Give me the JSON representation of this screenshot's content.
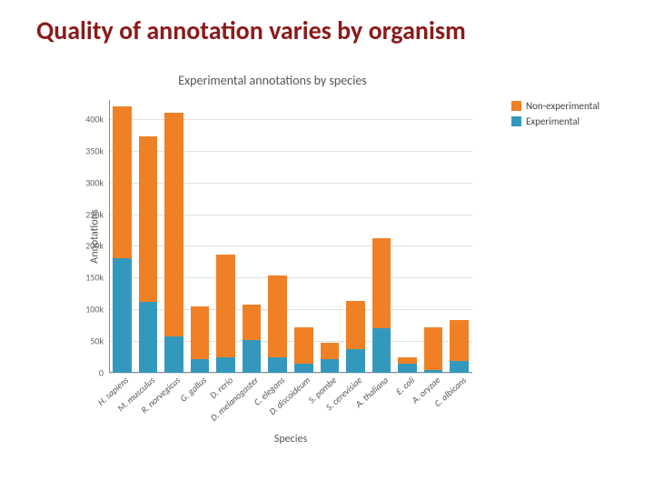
{
  "slide": {
    "title": "Quality of annotation varies by organism",
    "title_color": "#8b1a1a",
    "title_fontsize": 28
  },
  "chart": {
    "type": "stacked-bar",
    "title": "Experimental annotations by species",
    "title_fontsize": 14,
    "xlabel": "Species",
    "ylabel": "Annotations",
    "label_fontsize": 12,
    "background_color": "#ffffff",
    "grid_color": "#e0e0e0",
    "axis_color": "#888888",
    "tick_fontsize": 10,
    "bar_width": 0.72,
    "ylim": [
      0,
      430000
    ],
    "yticks": [
      0,
      50000,
      100000,
      150000,
      200000,
      250000,
      300000,
      350000,
      400000
    ],
    "ytick_labels": [
      "0",
      "50k",
      "100k",
      "150k",
      "200k",
      "250k",
      "300k",
      "350k",
      "400k"
    ],
    "categories": [
      "H. sapiens",
      "M. musculus",
      "R. norvegicus",
      "G. gallus",
      "D. rerio",
      "D. melanogaster",
      "C. elegans",
      "D. discoideum",
      "S. pombe",
      "S. cerevisiae",
      "A. thaliana",
      "E. coli",
      "A. oryzae",
      "C. albicans"
    ],
    "series": [
      {
        "name": "Experimental",
        "color": "#3498bd",
        "values": [
          180000,
          112000,
          58000,
          22000,
          25000,
          52000,
          25000,
          14000,
          22000,
          38000,
          70000,
          15000,
          4000,
          18000
        ]
      },
      {
        "name": "Non-experimental",
        "color": "#f08026",
        "values": [
          240000,
          260000,
          352000,
          83000,
          162000,
          55000,
          128000,
          58000,
          25000,
          75000,
          142000,
          10000,
          68000,
          65000
        ]
      }
    ],
    "legend": {
      "position": "top-right",
      "items": [
        {
          "label": "Non-experimental",
          "color": "#f08026"
        },
        {
          "label": "Experimental",
          "color": "#3498bd"
        }
      ]
    }
  }
}
